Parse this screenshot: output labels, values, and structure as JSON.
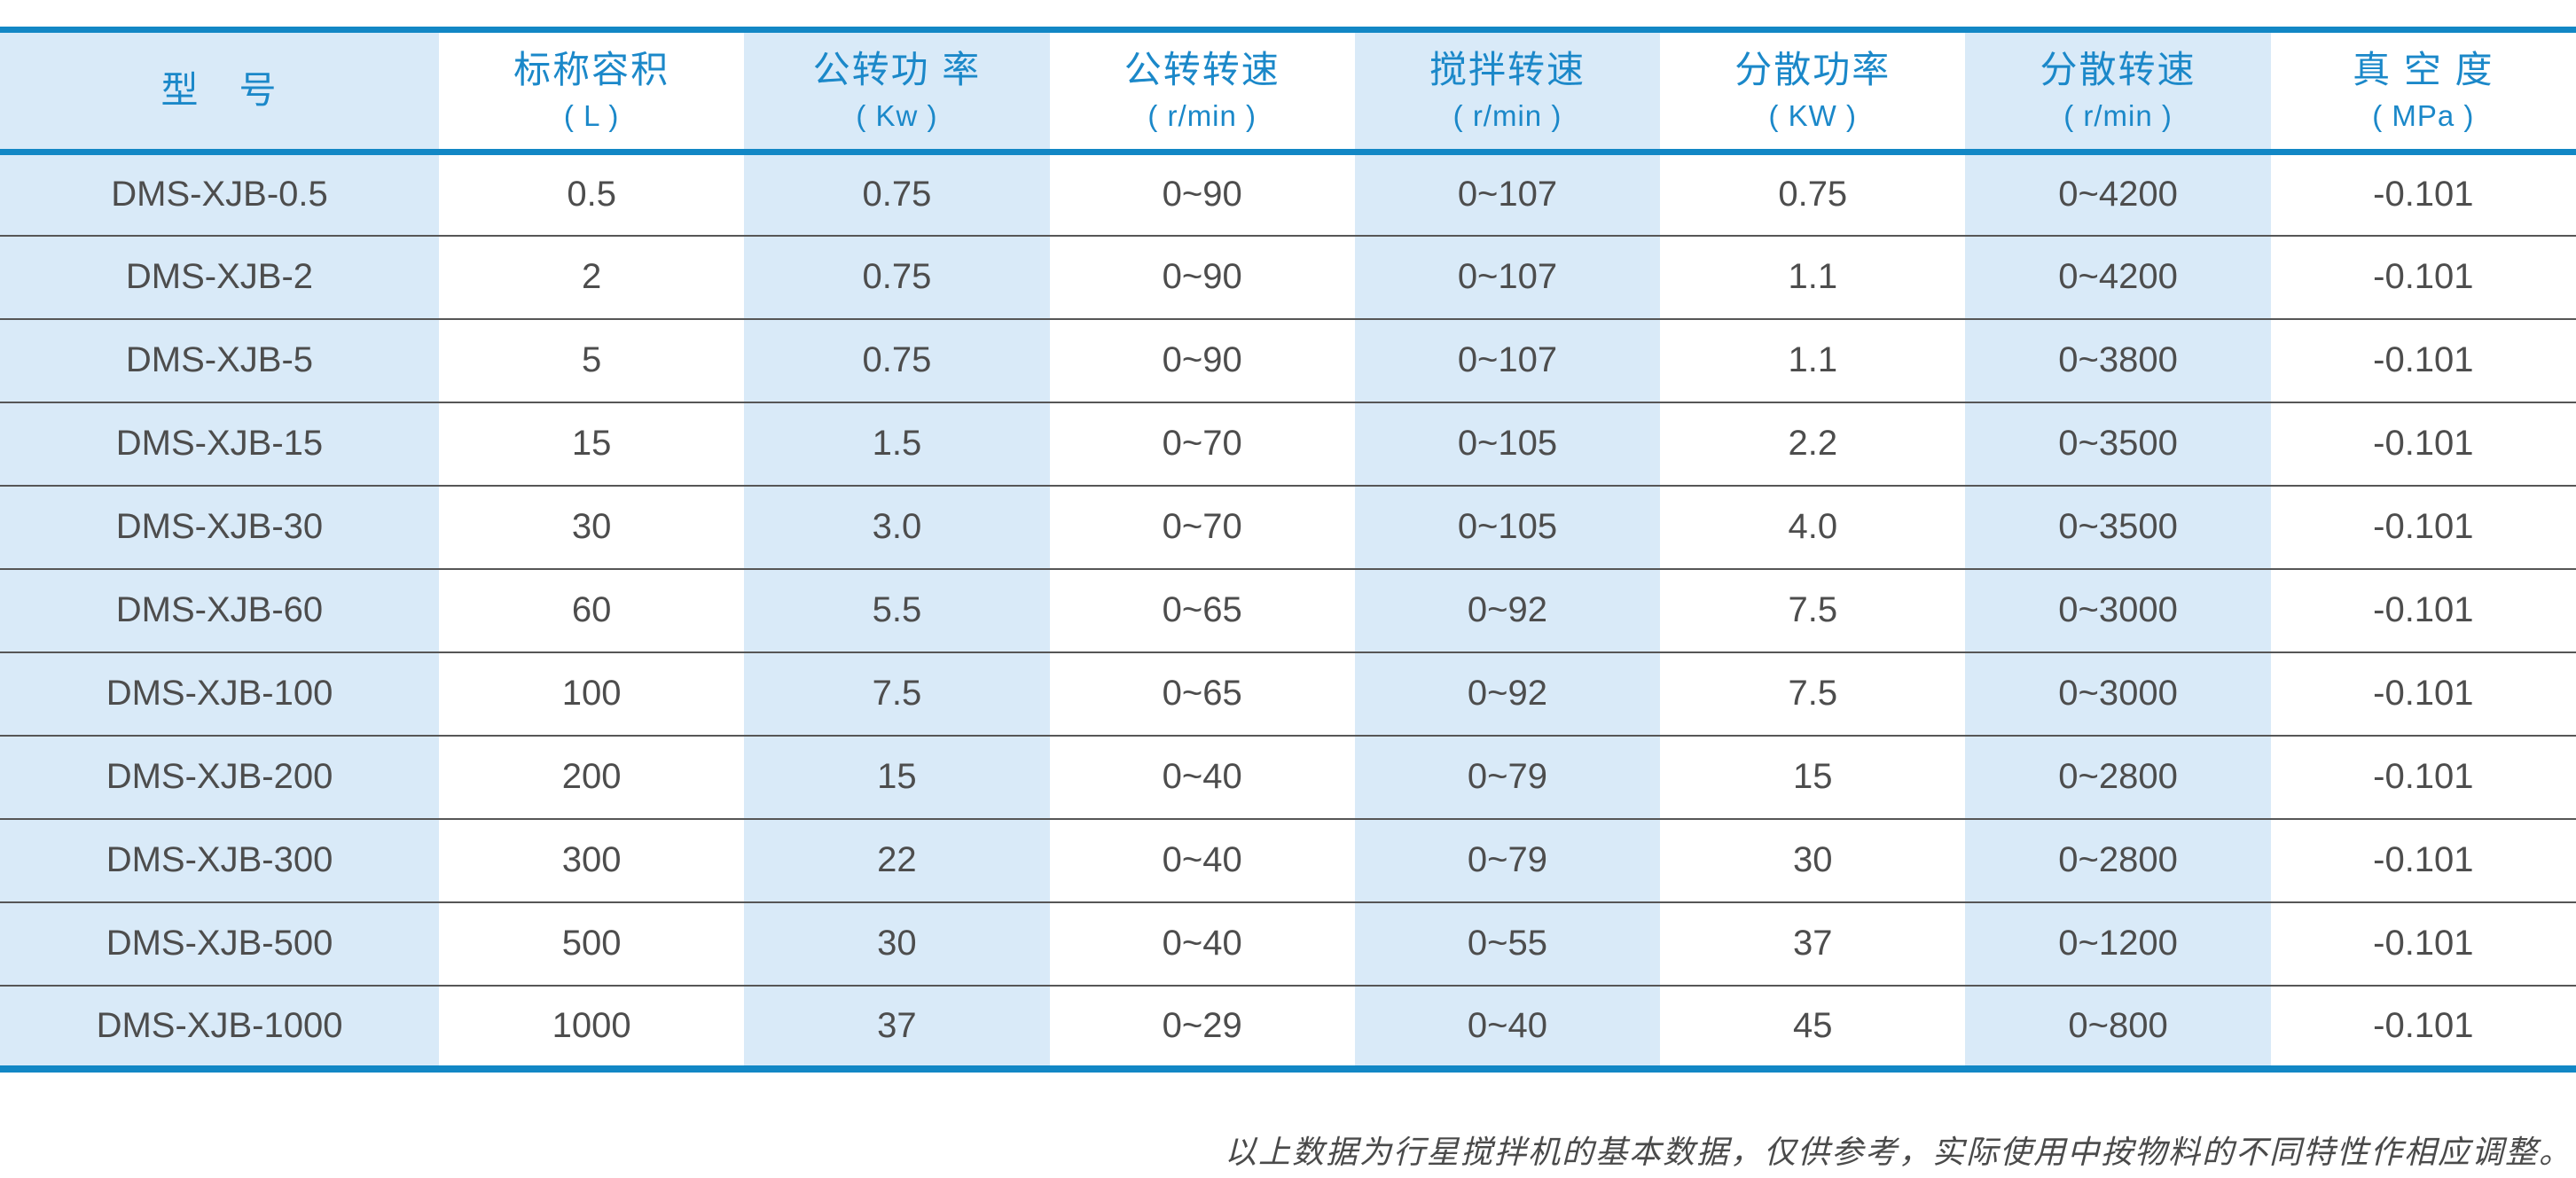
{
  "colors": {
    "border_blue": "#1287c5",
    "header_text": "#1b88c9",
    "stripe_blue": "#d9eaf8",
    "body_text": "#4d4d4d",
    "row_divider": "#565656",
    "footer_text": "#4a4a4a",
    "page_background": "#ffffff"
  },
  "table": {
    "columns": [
      {
        "label": "型　号",
        "unit": "",
        "shaded": true
      },
      {
        "label": "标称容积",
        "unit": "( L )",
        "shaded": false
      },
      {
        "label": "公转功 率",
        "unit": "( Kw )",
        "shaded": true
      },
      {
        "label": "公转转速",
        "unit": "( r/min )",
        "shaded": false
      },
      {
        "label": "搅拌转速",
        "unit": "( r/min )",
        "shaded": true
      },
      {
        "label": "分散功率",
        "unit": "( KW )",
        "shaded": false
      },
      {
        "label": "分散转速",
        "unit": "( r/min )",
        "shaded": true
      },
      {
        "label": "真 空 度",
        "unit": "( MPa )",
        "shaded": false
      }
    ],
    "rows": [
      [
        "DMS-XJB-0.5",
        "0.5",
        "0.75",
        "0~90",
        "0~107",
        "0.75",
        "0~4200",
        "-0.101"
      ],
      [
        "DMS-XJB-2",
        "2",
        "0.75",
        "0~90",
        "0~107",
        "1.1",
        "0~4200",
        "-0.101"
      ],
      [
        "DMS-XJB-5",
        "5",
        "0.75",
        "0~90",
        "0~107",
        "1.1",
        "0~3800",
        "-0.101"
      ],
      [
        "DMS-XJB-15",
        "15",
        "1.5",
        "0~70",
        "0~105",
        "2.2",
        "0~3500",
        "-0.101"
      ],
      [
        "DMS-XJB-30",
        "30",
        "3.0",
        "0~70",
        "0~105",
        "4.0",
        "0~3500",
        "-0.101"
      ],
      [
        "DMS-XJB-60",
        "60",
        "5.5",
        "0~65",
        "0~92",
        "7.5",
        "0~3000",
        "-0.101"
      ],
      [
        "DMS-XJB-100",
        "100",
        "7.5",
        "0~65",
        "0~92",
        "7.5",
        "0~3000",
        "-0.101"
      ],
      [
        "DMS-XJB-200",
        "200",
        "15",
        "0~40",
        "0~79",
        "15",
        "0~2800",
        "-0.101"
      ],
      [
        "DMS-XJB-300",
        "300",
        "22",
        "0~40",
        "0~79",
        "30",
        "0~2800",
        "-0.101"
      ],
      [
        "DMS-XJB-500",
        "500",
        "30",
        "0~40",
        "0~55",
        "37",
        "0~1200",
        "-0.101"
      ],
      [
        "DMS-XJB-1000",
        "1000",
        "37",
        "0~29",
        "0~40",
        "45",
        "0~800",
        "-0.101"
      ]
    ]
  },
  "footer": {
    "note": "以上数据为行星搅拌机的基本数据，仅供参考，实际使用中按物料的不同特性作相应调整。"
  }
}
